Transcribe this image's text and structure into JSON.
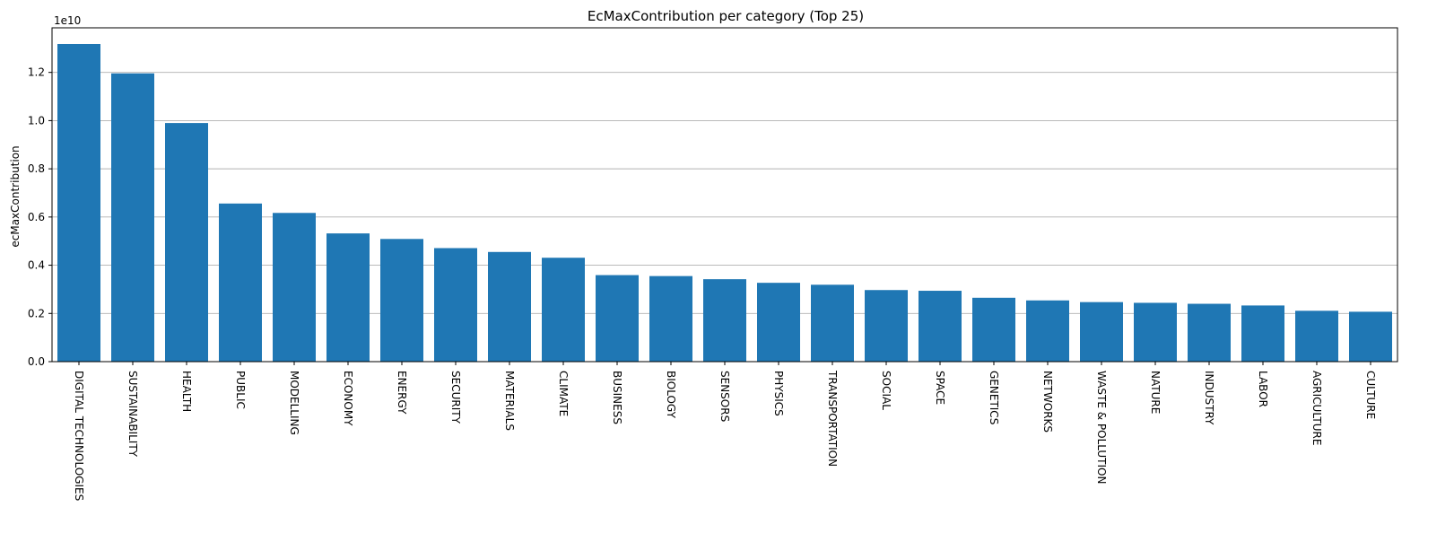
{
  "chart_data": {
    "type": "bar",
    "title": "EcMaxContribution per category (Top 25)",
    "xlabel": "",
    "ylabel": "ecMaxContribution",
    "y_offset_text": "1e10",
    "y_scale_factor": 10000000000,
    "ylim": [
      0,
      13850000000.0
    ],
    "yticks": [
      0,
      2000000000.0,
      4000000000.0,
      6000000000.0,
      8000000000.0,
      10000000000.0,
      12000000000.0
    ],
    "ytick_labels": [
      "0.0",
      "0.2",
      "0.4",
      "0.6",
      "0.8",
      "1.0",
      "1.2"
    ],
    "grid": {
      "y": true,
      "x": false
    },
    "legend": "none",
    "bar_color": "#1f77b4",
    "categories": [
      "DIGITAL TECHNOLOGIES",
      "SUSTAINABILITY",
      "HEALTH",
      "PUBLIC",
      "MODELLING",
      "ECONOMY",
      "ENERGY",
      "SECURITY",
      "MATERIALS",
      "CLIMATE",
      "BUSINESS",
      "BIOLOGY",
      "SENSORS",
      "PHYSICS",
      "TRANSPORTATION",
      "SOCIAL",
      "SPACE",
      "GENETICS",
      "NETWORKS",
      "WASTE & POLLUTION",
      "NATURE",
      "INDUSTRY",
      "LABOR",
      "AGRICULTURE",
      "CULTURE"
    ],
    "values": [
      13180000000,
      11960000000,
      9900000000,
      6560000000,
      6170000000,
      5320000000,
      5090000000,
      4710000000,
      4550000000,
      4310000000,
      3590000000,
      3550000000,
      3420000000,
      3270000000,
      3190000000,
      2970000000,
      2940000000,
      2650000000,
      2540000000,
      2470000000,
      2440000000,
      2400000000,
      2330000000,
      2110000000,
      2070000000
    ]
  }
}
